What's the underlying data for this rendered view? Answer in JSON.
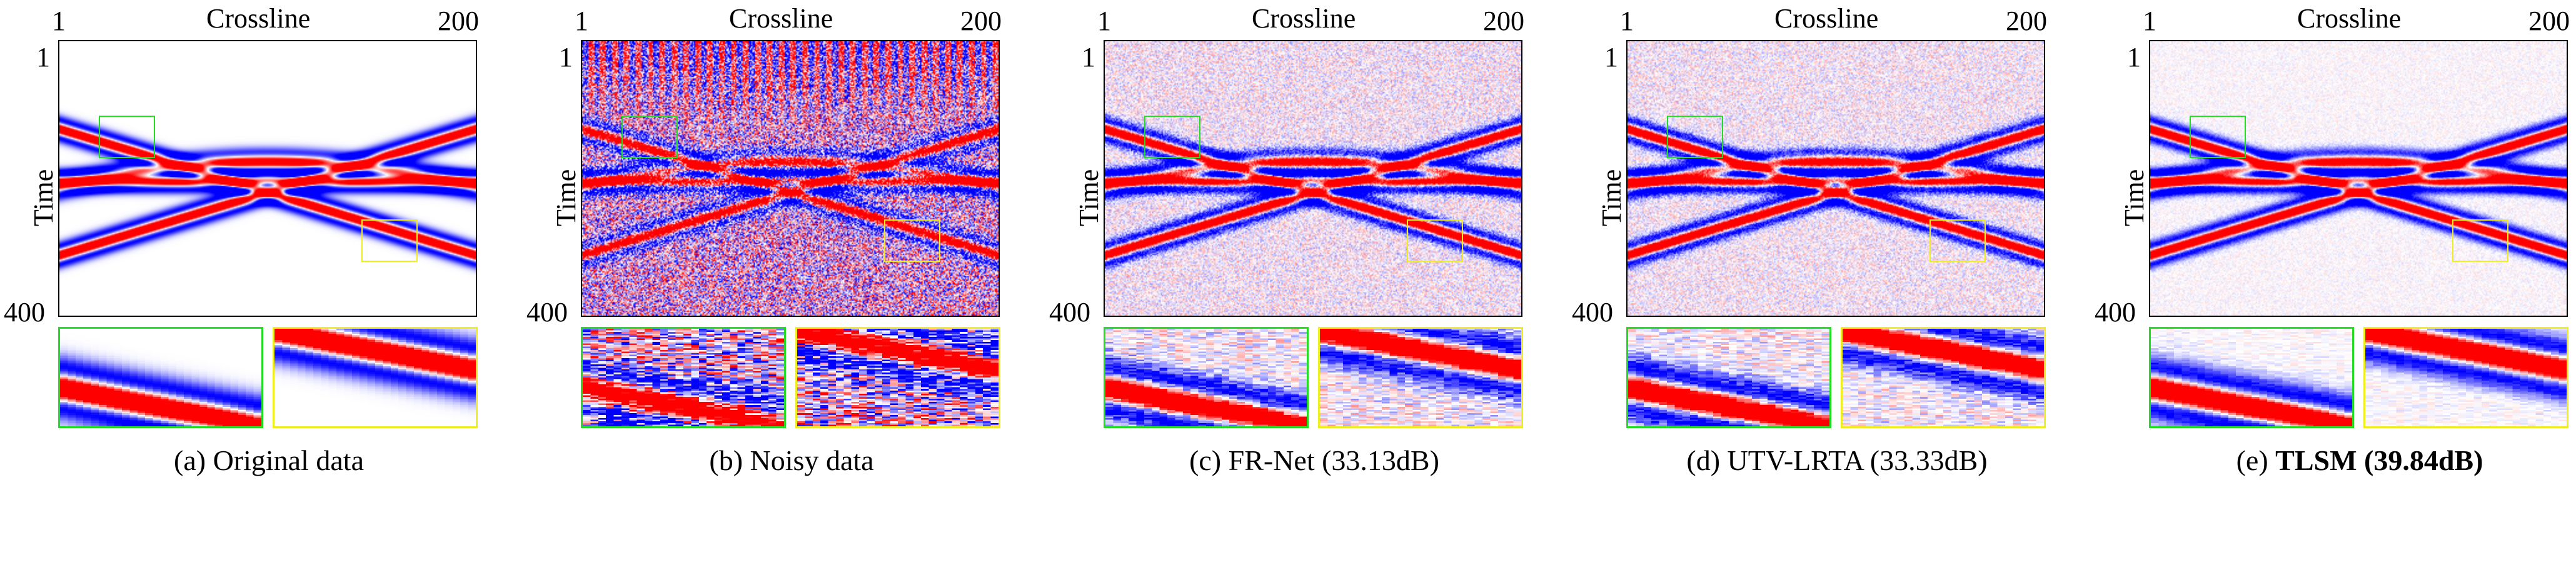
{
  "figure": {
    "axis": {
      "x_title": "Crossline",
      "x_first": "1",
      "x_last": "200",
      "y_title": "Time",
      "y_first": "1",
      "y_last": "400"
    },
    "colors": {
      "positive": "#ff0000",
      "negative": "#0000ff",
      "zero": "#ffffff",
      "inset_green": "#22dd22",
      "inset_yellow": "#eeee22"
    },
    "panels": [
      {
        "prefix": "(a) Original data",
        "bold": "",
        "noise": 0,
        "stripes": 0
      },
      {
        "prefix": "(b) Noisy data",
        "bold": "",
        "noise": 0.55,
        "stripes": 1
      },
      {
        "prefix": "(c) FR-Net (33.13dB)",
        "bold": "",
        "noise": 0.18,
        "stripes": 0
      },
      {
        "prefix": "(d) UTV-LRTA (33.33dB)",
        "bold": "",
        "noise": 0.16,
        "stripes": 0
      },
      {
        "prefix": "(e) ",
        "bold": "TLSM (39.84dB)",
        "noise": 0.06,
        "stripes": 0
      }
    ]
  }
}
